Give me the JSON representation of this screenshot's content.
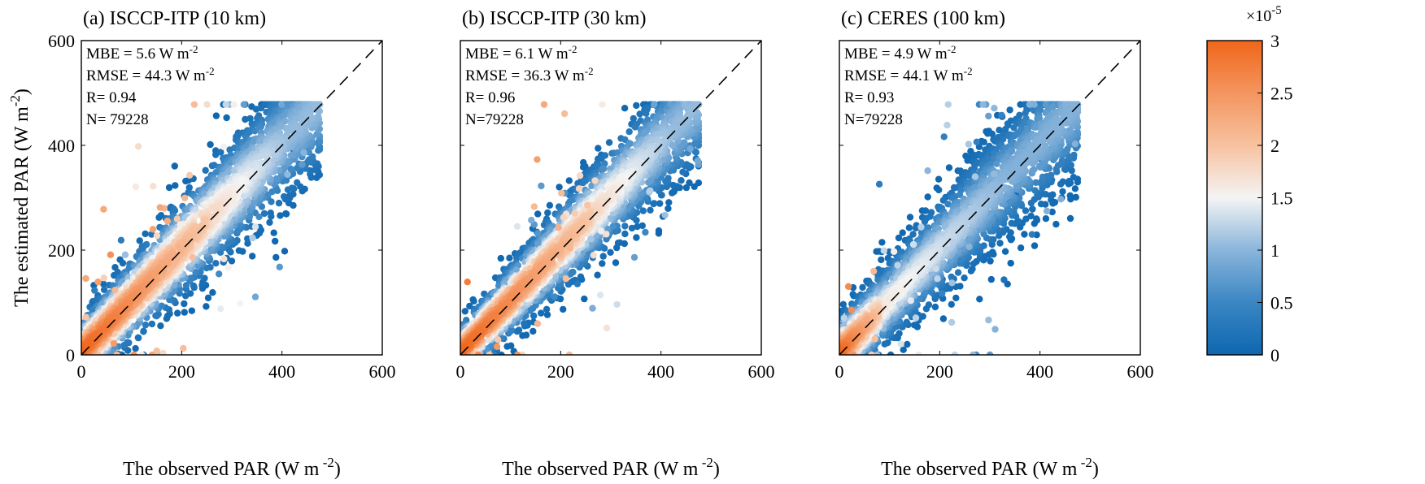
{
  "chart_data": [
    {
      "type": "scatter",
      "title": "(a) ISCCP-ITP (10 km)",
      "xlabel": "The observed PAR (W m",
      "xlabel_exp": " -2",
      "ylabel": "The estimated PAR (W m",
      "ylabel_exp": "-2",
      "xlim": [
        0,
        600
      ],
      "ylim": [
        0,
        600
      ],
      "xticks": [
        "0",
        "200",
        "400",
        "600"
      ],
      "yticks": [
        "0",
        "200",
        "400",
        "600"
      ],
      "stats": {
        "mbe": "MBE = 5.6 W m",
        "rmse": "RMSE = 44.3 W m",
        "r": "R= 0.94",
        "n": "N= 79228",
        "unit_exp": "-2"
      },
      "reference_line": "1:1 dashed",
      "density_high_until_x": 250
    },
    {
      "type": "scatter",
      "title": "(b) ISCCP-ITP (30 km)",
      "xlabel": "The observed PAR (W m",
      "xlabel_exp": " -2",
      "xlim": [
        0,
        600
      ],
      "ylim": [
        0,
        600
      ],
      "xticks": [
        "0",
        "200",
        "400",
        "600"
      ],
      "stats": {
        "mbe": "MBE = 6.1 W m",
        "rmse": "RMSE = 36.3 W m",
        "r": "R= 0.96",
        "n": "N=79228",
        "unit_exp": "-2"
      },
      "reference_line": "1:1 dashed",
      "density_high_until_x": 260
    },
    {
      "type": "scatter",
      "title": "(c) CERES (100 km)",
      "xlabel": "The observed PAR (W m",
      "xlabel_exp": " -2",
      "xlim": [
        0,
        600
      ],
      "ylim": [
        0,
        600
      ],
      "xticks": [
        "0",
        "200",
        "400",
        "600"
      ],
      "stats": {
        "mbe": "MBE = 4.9 W m",
        "rmse": "RMSE = 44.1 W m",
        "r": "R= 0.93",
        "n": "N=79228",
        "unit_exp": "-2"
      },
      "reference_line": "1:1 dashed",
      "density_high_until_x": 80
    }
  ],
  "colorbar": {
    "range": [
      0,
      3
    ],
    "ticks": [
      "0",
      "0.5",
      "1",
      "1.5",
      "2",
      "2.5",
      "3"
    ],
    "multiplier": "×10",
    "multiplier_exp": "-5",
    "colors": [
      "#0f67b0",
      "#3a86c3",
      "#8ab5db",
      "#f4f4f4",
      "#f7c2a0",
      "#f4955f",
      "#f0661a"
    ]
  }
}
